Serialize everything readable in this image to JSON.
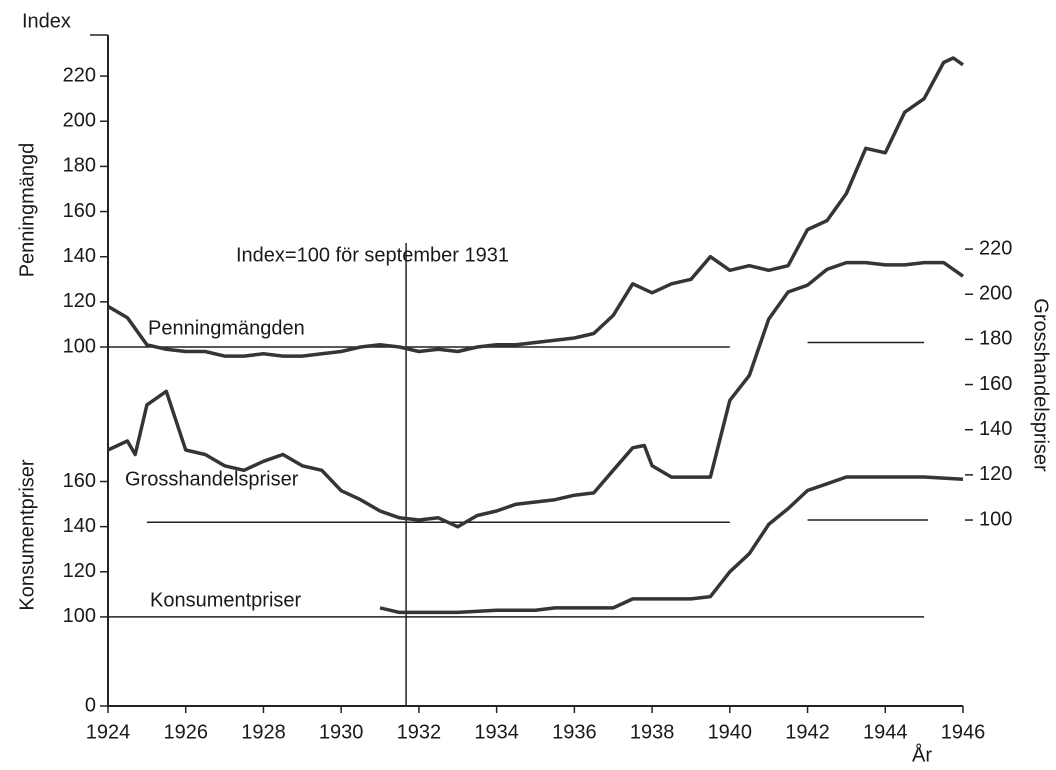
{
  "chart_data": [
    {
      "type": "line",
      "corner_label": "Index",
      "axis_label": "Penningmängd",
      "xlim": [
        1924,
        1946
      ],
      "ylim": [
        90,
        230
      ],
      "yticks": [
        100,
        120,
        140,
        160,
        180,
        200,
        220
      ],
      "x": [
        1924,
        1924.5,
        1925,
        1925.5,
        1926,
        1926.5,
        1927,
        1927.5,
        1928,
        1928.5,
        1929,
        1929.5,
        1930,
        1930.5,
        1931,
        1931.5,
        1932,
        1932.5,
        1933,
        1933.5,
        1934,
        1934.5,
        1935,
        1935.5,
        1936,
        1936.5,
        1937,
        1937.5,
        1938,
        1938.5,
        1939,
        1939.5,
        1940,
        1940.5,
        1941,
        1941.5,
        1942,
        1942.5,
        1943,
        1943.5,
        1944,
        1944.5,
        1945,
        1945.5,
        1945.75,
        1946
      ],
      "series": [
        {
          "name": "Penningmängden",
          "color": "#353535",
          "values": [
            118,
            113,
            101,
            99,
            98,
            98,
            96,
            96,
            97,
            96,
            96,
            97,
            98,
            100,
            101,
            100,
            98,
            99,
            98,
            100,
            101,
            101,
            102,
            103,
            104,
            106,
            114,
            128,
            124,
            128,
            130,
            140,
            134,
            136,
            134,
            136,
            152,
            156,
            168,
            188,
            186,
            204,
            210,
            226,
            228,
            225
          ]
        }
      ],
      "reference_lines": [
        {
          "y": 100,
          "x": [
            1924,
            1940
          ]
        },
        {
          "y": 102,
          "x": [
            1942,
            1945
          ]
        }
      ],
      "annotation": {
        "text": "Index=100 för september 1931",
        "x": 1931.67
      }
    },
    {
      "type": "line",
      "axis_label": "Grosshandelspriser",
      "xlim": [
        1924,
        1946
      ],
      "y2lim": [
        90,
        230
      ],
      "y2ticks": [
        100,
        120,
        140,
        160,
        180,
        200,
        220
      ],
      "x": [
        1924,
        1924.5,
        1924.7,
        1925,
        1925.5,
        1926,
        1926.5,
        1927,
        1927.5,
        1928,
        1928.5,
        1929,
        1929.5,
        1930,
        1930.5,
        1931,
        1931.5,
        1932,
        1932.5,
        1933,
        1933.5,
        1934,
        1934.5,
        1935,
        1935.5,
        1936,
        1936.5,
        1937,
        1937.5,
        1937.8,
        1938,
        1938.5,
        1939,
        1939.5,
        1940,
        1940.5,
        1941,
        1941.5,
        1942,
        1942.5,
        1943,
        1943.5,
        1944,
        1944.5,
        1945,
        1945.5,
        1946
      ],
      "series": [
        {
          "name": "Grosshandelspriser",
          "color": "#353535",
          "axis": "y2",
          "values": [
            131,
            135,
            129,
            151,
            157,
            131,
            129,
            124,
            122,
            126,
            129,
            124,
            122,
            113,
            109,
            104,
            101,
            100,
            101,
            97,
            102,
            104,
            107,
            108,
            109,
            111,
            112,
            122,
            132,
            133,
            124,
            119,
            119,
            119,
            153,
            164,
            189,
            201,
            204,
            211,
            214,
            214,
            213,
            213,
            214,
            214,
            208
          ]
        }
      ],
      "reference_lines": [
        {
          "y": 99,
          "x": [
            1925,
            1940
          ]
        },
        {
          "y": 100,
          "x": [
            1942,
            1945.1
          ]
        }
      ]
    },
    {
      "type": "line",
      "axis_label": "Konsumentpriser",
      "xlabel": "År",
      "xlim": [
        1924,
        1946
      ],
      "xticks": [
        1924,
        1926,
        1928,
        1930,
        1932,
        1934,
        1936,
        1938,
        1940,
        1942,
        1944,
        1946
      ],
      "ylim": [
        90,
        230
      ],
      "yticks": [
        100,
        120,
        140,
        160
      ],
      "origin_tick": 0,
      "x": [
        1931,
        1931.5,
        1932,
        1933,
        1934,
        1935,
        1935.5,
        1936,
        1937,
        1937.5,
        1938,
        1939,
        1939.5,
        1940,
        1940.5,
        1941,
        1941.5,
        1942,
        1942.5,
        1943,
        1944,
        1945,
        1946
      ],
      "series": [
        {
          "name": "Konsumentpriser",
          "color": "#353535",
          "values": [
            104,
            102,
            102,
            102,
            103,
            103,
            104,
            104,
            104,
            108,
            108,
            108,
            109,
            120,
            128,
            141,
            148,
            156,
            159,
            162,
            162,
            162,
            161
          ]
        }
      ],
      "reference_lines": [
        {
          "y": 100,
          "x": [
            1924,
            1945
          ]
        }
      ]
    }
  ]
}
